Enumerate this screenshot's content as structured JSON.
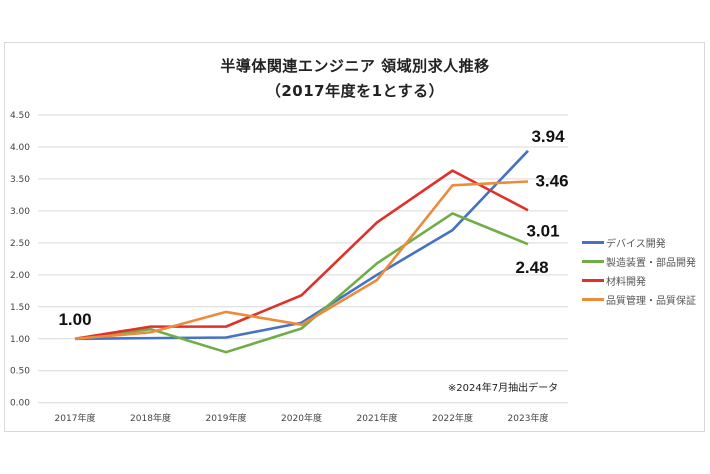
{
  "chart_data": {
    "type": "line",
    "title": "半導体関連エンジニア 領域別求人推移",
    "subtitle": "（2017年度を1とする）",
    "xlabel": "",
    "ylabel": "",
    "categories": [
      "2017年度",
      "2018年度",
      "2019年度",
      "2020年度",
      "2021年度",
      "2022年度",
      "2023年度"
    ],
    "ylim": [
      0,
      4.5
    ],
    "yticks": [
      "0.00",
      "0.50",
      "1.00",
      "1.50",
      "2.00",
      "2.50",
      "3.00",
      "3.50",
      "4.00",
      "4.50"
    ],
    "ytick_values": [
      0,
      0.5,
      1,
      1.5,
      2,
      2.5,
      3,
      3.5,
      4,
      4.5
    ],
    "grid": true,
    "legend_position": "right",
    "series": [
      {
        "name": "デバイス開発",
        "color": "#4472c4",
        "values": [
          1.0,
          1.01,
          1.02,
          1.25,
          2.0,
          2.7,
          3.94
        ]
      },
      {
        "name": "製造装置・部品開発",
        "color": "#70ad47",
        "values": [
          1.0,
          1.15,
          0.79,
          1.16,
          2.18,
          2.96,
          2.48
        ]
      },
      {
        "name": "材料開発",
        "color": "#e0302a",
        "values": [
          1.0,
          1.19,
          1.19,
          1.68,
          2.82,
          3.63,
          3.01
        ]
      },
      {
        "name": "品質管理・品質保証",
        "color": "#ed8b3c",
        "values": [
          1.0,
          1.1,
          1.42,
          1.22,
          1.92,
          3.4,
          3.46
        ]
      }
    ],
    "data_labels": [
      {
        "text": "1.00",
        "category_index": 0,
        "value": 1.0
      },
      {
        "text": "3.94",
        "category_index": 6,
        "value": 3.94
      },
      {
        "text": "3.46",
        "category_index": 6,
        "value": 3.46
      },
      {
        "text": "3.01",
        "category_index": 6,
        "value": 3.01
      },
      {
        "text": "2.48",
        "category_index": 6,
        "value": 2.48
      }
    ],
    "annotation": "※2024年7月抽出データ"
  }
}
